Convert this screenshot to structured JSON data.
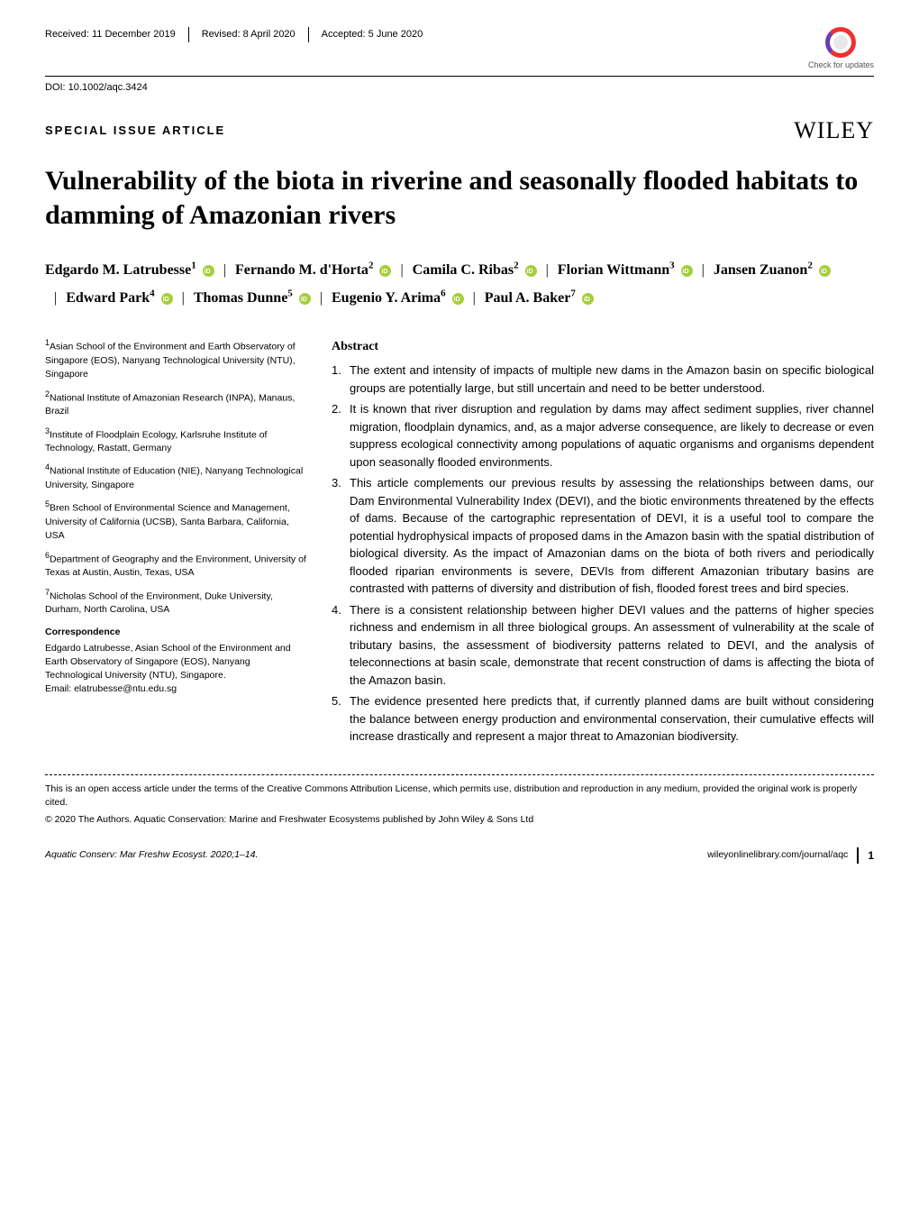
{
  "header": {
    "received": "Received: 11 December 2019",
    "revised": "Revised: 8 April 2020",
    "accepted": "Accepted: 5 June 2020",
    "check_updates": "Check for updates"
  },
  "doi": "DOI: 10.1002/aqc.3424",
  "article_type": "SPECIAL ISSUE ARTICLE",
  "publisher": "WILEY",
  "title": "Vulnerability of the biota in riverine and seasonally flooded habitats to damming of Amazonian rivers",
  "authors": [
    {
      "name": "Edgardo M. Latrubesse",
      "affil": "1",
      "orcid": true
    },
    {
      "name": "Fernando M. d'Horta",
      "affil": "2",
      "orcid": true
    },
    {
      "name": "Camila C. Ribas",
      "affil": "2",
      "orcid": true
    },
    {
      "name": "Florian Wittmann",
      "affil": "3",
      "orcid": true
    },
    {
      "name": "Jansen Zuanon",
      "affil": "2",
      "orcid": true
    },
    {
      "name": "Edward Park",
      "affil": "4",
      "orcid": true
    },
    {
      "name": "Thomas Dunne",
      "affil": "5",
      "orcid": true
    },
    {
      "name": "Eugenio Y. Arima",
      "affil": "6",
      "orcid": true
    },
    {
      "name": "Paul A. Baker",
      "affil": "7",
      "orcid": true
    }
  ],
  "affiliations": [
    {
      "num": "1",
      "text": "Asian School of the Environment and Earth Observatory of Singapore (EOS), Nanyang Technological University (NTU), Singapore"
    },
    {
      "num": "2",
      "text": "National Institute of Amazonian Research (INPA), Manaus, Brazil"
    },
    {
      "num": "3",
      "text": "Institute of Floodplain Ecology, Karlsruhe Institute of Technology, Rastatt, Germany"
    },
    {
      "num": "4",
      "text": "National Institute of Education (NIE), Nanyang Technological University, Singapore"
    },
    {
      "num": "5",
      "text": "Bren School of Environmental Science and Management, University of California (UCSB), Santa Barbara, California, USA"
    },
    {
      "num": "6",
      "text": "Department of Geography and the Environment, University of Texas at Austin, Austin, Texas, USA"
    },
    {
      "num": "7",
      "text": "Nicholas School of the Environment, Duke University, Durham, North Carolina, USA"
    }
  ],
  "correspondence": {
    "head": "Correspondence",
    "body": "Edgardo Latrubesse, Asian School of the Environment and Earth Observatory of Singapore (EOS), Nanyang Technological University (NTU), Singapore.",
    "email": "Email: elatrubesse@ntu.edu.sg"
  },
  "abstract": {
    "head": "Abstract",
    "items": [
      "The extent and intensity of impacts of multiple new dams in the Amazon basin on specific biological groups are potentially large, but still uncertain and need to be better understood.",
      "It is known that river disruption and regulation by dams may affect sediment supplies, river channel migration, floodplain dynamics, and, as a major adverse consequence, are likely to decrease or even suppress ecological connectivity among populations of aquatic organisms and organisms dependent upon seasonally flooded environments.",
      "This article complements our previous results by assessing the relationships between dams, our Dam Environmental Vulnerability Index (DEVI), and the biotic environments threatened by the effects of dams. Because of the cartographic representation of DEVI, it is a useful tool to compare the potential hydrophysical impacts of proposed dams in the Amazon basin with the spatial distribution of biological diversity. As the impact of Amazonian dams on the biota of both rivers and periodically flooded riparian environments is severe, DEVIs from different Amazonian tributary basins are contrasted with patterns of diversity and distribution of fish, flooded forest trees and bird species.",
      "There is a consistent relationship between higher DEVI values and the patterns of higher species richness and endemism in all three biological groups. An assessment of vulnerability at the scale of tributary basins, the assessment of biodiversity patterns related to DEVI, and the analysis of teleconnections at basin scale, demonstrate that recent construction of dams is affecting the biota of the Amazon basin.",
      "The evidence presented here predicts that, if currently planned dams are built without considering the balance between energy production and environmental conservation, their cumulative effects will increase drastically and represent a major threat to Amazonian biodiversity."
    ]
  },
  "license": "This is an open access article under the terms of the Creative Commons Attribution License, which permits use, distribution and reproduction in any medium, provided the original work is properly cited.",
  "copyright": "© 2020 The Authors. Aquatic Conservation: Marine and Freshwater Ecosystems published by John Wiley & Sons Ltd",
  "footer": {
    "citation": "Aquatic Conserv: Mar Freshw Ecosyst. 2020;1–14.",
    "url": "wileyonlinelibrary.com/journal/aqc",
    "page": "1"
  }
}
